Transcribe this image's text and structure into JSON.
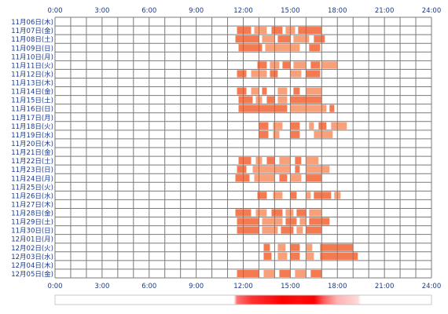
{
  "chart_data": {
    "type": "heatmap",
    "title": "",
    "xlabel": "",
    "ylabel": "",
    "x_unit": "hour",
    "xlim": [
      0,
      24
    ],
    "x_ticks": [
      "0:00",
      "3:00",
      "6:00",
      "9:00",
      "12:00",
      "15:00",
      "18:00",
      "21:00",
      "24:00"
    ],
    "grid": true,
    "colors": {
      "bar": "#f47a52",
      "bar_light": "#f8a07a",
      "grid": "#7a7a7a",
      "axis_text": "#1a3a8a",
      "density_peak": "#ff0000"
    },
    "rows": [
      {
        "date": "11月06日(木)",
        "intervals": []
      },
      {
        "date": "11月07日(金)",
        "intervals": [
          [
            11.6,
            12.5
          ],
          [
            12.7,
            13.5
          ],
          [
            13.8,
            14.5
          ],
          [
            14.7,
            15.3
          ],
          [
            15.5,
            17.0
          ]
        ]
      },
      {
        "date": "11月08日(土)",
        "intervals": [
          [
            11.5,
            13.0
          ],
          [
            13.2,
            14.0
          ],
          [
            14.2,
            15.0
          ],
          [
            15.2,
            16.2
          ],
          [
            16.5,
            17.2
          ]
        ]
      },
      {
        "date": "11月09日(日)",
        "intervals": [
          [
            11.7,
            13.2
          ],
          [
            13.4,
            15.6
          ],
          [
            16.2,
            16.9
          ]
        ]
      },
      {
        "date": "11月10日(月)",
        "intervals": []
      },
      {
        "date": "11月11日(火)",
        "intervals": [
          [
            12.9,
            13.5
          ],
          [
            13.7,
            14.3
          ],
          [
            14.5,
            15.0
          ],
          [
            15.2,
            16.0
          ],
          [
            16.3,
            16.9
          ],
          [
            17.0,
            18.0
          ]
        ]
      },
      {
        "date": "11月12日(水)",
        "intervals": [
          [
            11.6,
            12.2
          ],
          [
            12.5,
            13.5
          ],
          [
            13.7,
            14.2
          ],
          [
            15.0,
            15.7
          ],
          [
            16.0,
            16.9
          ]
        ]
      },
      {
        "date": "11月13日(木)",
        "intervals": []
      },
      {
        "date": "11月14日(金)",
        "intervals": [
          [
            11.6,
            12.2
          ],
          [
            12.5,
            13.0
          ],
          [
            13.2,
            13.5
          ],
          [
            14.2,
            14.8
          ],
          [
            15.2,
            15.6
          ],
          [
            16.0,
            17.0
          ]
        ]
      },
      {
        "date": "11月15日(土)",
        "intervals": [
          [
            11.7,
            12.6
          ],
          [
            12.8,
            13.2
          ],
          [
            13.5,
            14.0
          ],
          [
            14.2,
            14.8
          ],
          [
            15.0,
            17.0
          ]
        ]
      },
      {
        "date": "11月16日(日)",
        "intervals": [
          [
            11.7,
            14.8
          ],
          [
            15.0,
            17.3
          ],
          [
            17.5,
            17.8
          ]
        ]
      },
      {
        "date": "11月17日(月)",
        "intervals": []
      },
      {
        "date": "11月18日(火)",
        "intervals": [
          [
            13.0,
            13.6
          ],
          [
            13.9,
            14.5
          ],
          [
            15.0,
            15.6
          ],
          [
            16.2,
            16.5
          ],
          [
            16.8,
            17.3
          ],
          [
            17.6,
            18.6
          ]
        ]
      },
      {
        "date": "11月19日(水)",
        "intervals": [
          [
            13.0,
            13.6
          ],
          [
            13.9,
            14.3
          ],
          [
            15.0,
            15.6
          ],
          [
            16.5,
            17.7
          ]
        ]
      },
      {
        "date": "11月20日(木)",
        "intervals": []
      },
      {
        "date": "11月21日(金)",
        "intervals": []
      },
      {
        "date": "11月22日(土)",
        "intervals": [
          [
            11.7,
            12.5
          ],
          [
            12.8,
            13.2
          ],
          [
            13.5,
            14.0
          ],
          [
            14.3,
            15.0
          ],
          [
            15.3,
            15.7
          ],
          [
            16.0,
            16.8
          ]
        ]
      },
      {
        "date": "11月23日(日)",
        "intervals": [
          [
            11.6,
            12.2
          ],
          [
            12.6,
            15.0
          ],
          [
            15.3,
            15.6
          ],
          [
            16.0,
            17.5
          ]
        ]
      },
      {
        "date": "11月24日(月)",
        "intervals": [
          [
            11.5,
            12.4
          ],
          [
            12.7,
            14.0
          ],
          [
            14.3,
            14.8
          ],
          [
            15.0,
            15.7
          ],
          [
            16.0,
            17.0
          ]
        ]
      },
      {
        "date": "11月25日(火)",
        "intervals": []
      },
      {
        "date": "11月26日(水)",
        "intervals": [
          [
            12.9,
            13.5
          ],
          [
            13.9,
            14.5
          ],
          [
            15.0,
            15.4
          ],
          [
            16.0,
            16.3
          ],
          [
            16.5,
            17.6
          ],
          [
            17.8,
            18.2
          ]
        ]
      },
      {
        "date": "11月27日(木)",
        "intervals": []
      },
      {
        "date": "11月28日(金)",
        "intervals": [
          [
            11.5,
            12.5
          ],
          [
            12.8,
            13.5
          ],
          [
            13.8,
            14.5
          ],
          [
            14.7,
            15.2
          ],
          [
            15.4,
            16.0
          ],
          [
            16.2,
            17.0
          ]
        ]
      },
      {
        "date": "11月29日(土)",
        "intervals": [
          [
            11.6,
            13.0
          ],
          [
            13.2,
            14.5
          ],
          [
            14.7,
            15.4
          ],
          [
            15.6,
            16.0
          ],
          [
            16.2,
            17.5
          ]
        ]
      },
      {
        "date": "11月30日(日)",
        "intervals": [
          [
            11.6,
            13.0
          ],
          [
            13.2,
            14.2
          ],
          [
            14.4,
            15.2
          ],
          [
            15.4,
            15.8
          ],
          [
            16.0,
            17.0
          ]
        ]
      },
      {
        "date": "12月01日(月)",
        "intervals": []
      },
      {
        "date": "12月02日(火)",
        "intervals": [
          [
            13.3,
            13.7
          ],
          [
            14.2,
            14.7
          ],
          [
            15.0,
            15.6
          ],
          [
            16.0,
            16.4
          ],
          [
            16.9,
            19.0
          ]
        ]
      },
      {
        "date": "12月03日(水)",
        "intervals": [
          [
            13.3,
            13.8
          ],
          [
            14.2,
            14.8
          ],
          [
            15.0,
            15.6
          ],
          [
            16.0,
            16.5
          ],
          [
            16.9,
            19.3
          ]
        ]
      },
      {
        "date": "12月04日(木)",
        "intervals": []
      },
      {
        "date": "12月05日(金)",
        "intervals": [
          [
            11.6,
            13.0
          ],
          [
            13.3,
            14.0
          ],
          [
            14.3,
            15.0
          ],
          [
            15.3,
            16.0
          ],
          [
            16.3,
            17.0
          ]
        ]
      }
    ],
    "density_bar": {
      "description": "hourly activity density strip",
      "stops": [
        {
          "hour": 0,
          "intensity": 0
        },
        {
          "hour": 11.4,
          "intensity": 0
        },
        {
          "hour": 11.6,
          "intensity": 0.55
        },
        {
          "hour": 12.5,
          "intensity": 0.8
        },
        {
          "hour": 13.5,
          "intensity": 0.9
        },
        {
          "hour": 14.5,
          "intensity": 1.0
        },
        {
          "hour": 15.5,
          "intensity": 0.95
        },
        {
          "hour": 16.5,
          "intensity": 1.0
        },
        {
          "hour": 17.2,
          "intensity": 0.6
        },
        {
          "hour": 18.0,
          "intensity": 0.3
        },
        {
          "hour": 19.3,
          "intensity": 0.15
        },
        {
          "hour": 19.5,
          "intensity": 0
        },
        {
          "hour": 24,
          "intensity": 0
        }
      ]
    }
  }
}
